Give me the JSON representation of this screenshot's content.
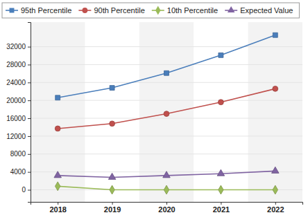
{
  "chart_data": {
    "type": "line",
    "categories": [
      "2018",
      "2019",
      "2020",
      "2021",
      "2022"
    ],
    "series": [
      {
        "name": "95th Percentile",
        "color": "#4a7ebb",
        "marker": "square",
        "values": [
          20600,
          22800,
          26100,
          30100,
          34600
        ]
      },
      {
        "name": "90th Percentile",
        "color": "#c0504d",
        "marker": "circle",
        "values": [
          13700,
          14800,
          17000,
          19600,
          22600
        ]
      },
      {
        "name": "10th Percentile",
        "color": "#9bbb59",
        "marker": "diamond",
        "values": [
          800,
          0,
          0,
          0,
          0
        ]
      },
      {
        "name": "Expected Value",
        "color": "#8064a2",
        "marker": "triangle",
        "values": [
          3200,
          2800,
          3200,
          3600,
          4200
        ]
      }
    ],
    "ylim": [
      -2700,
      37500
    ],
    "yticks": [
      0,
      4000,
      8000,
      12000,
      16000,
      20000,
      24000,
      28000,
      32000
    ],
    "grid": true,
    "legend": "top"
  }
}
